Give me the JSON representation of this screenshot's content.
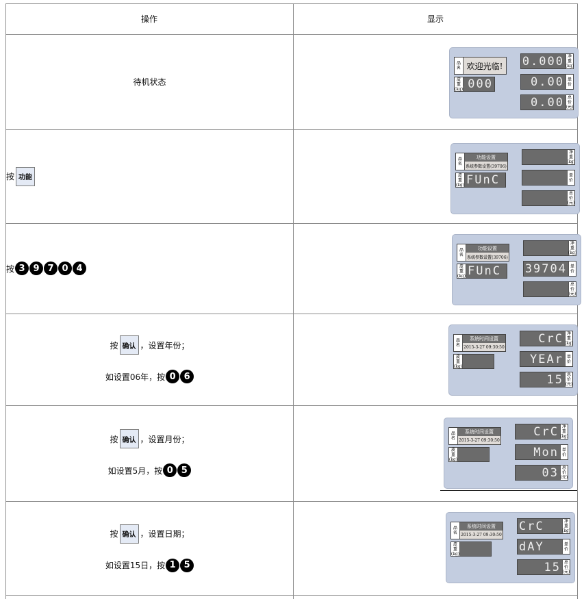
{
  "header": {
    "op": "操作",
    "display": "显示"
  },
  "labels": {
    "name": [
      "品",
      "名"
    ],
    "tare": [
      "皮",
      "重",
      "(kg)"
    ],
    "net": [
      "净",
      "重",
      "(kg)"
    ],
    "price": [
      "单",
      "价",
      ""
    ],
    "total": [
      "总",
      "价",
      "(元)"
    ]
  },
  "rows": [
    {
      "op": [
        [
          {
            "t": "text",
            "v": "待机状态"
          }
        ]
      ],
      "align": "center",
      "panel": {
        "name_big": "欢迎光临!",
        "tare": "0.000",
        "net": "0.000",
        "price": "0.00",
        "total": "0.00",
        "tare_left": false
      }
    },
    {
      "op": [
        [
          {
            "t": "text",
            "v": "按"
          },
          {
            "t": "key",
            "v": "功能"
          }
        ]
      ],
      "align": "left",
      "panel": {
        "name_top": "功能设置",
        "name_bottom": "系统参数设置(39706)",
        "tare": "FUnC",
        "net": "",
        "price": "",
        "total": "",
        "tare_left": true
      }
    },
    {
      "op": [
        [
          {
            "t": "text",
            "v": "按"
          },
          {
            "t": "dig",
            "v": "3"
          },
          {
            "t": "dig",
            "v": "9"
          },
          {
            "t": "dig",
            "v": "7"
          },
          {
            "t": "dig",
            "v": "0"
          },
          {
            "t": "dig",
            "v": "4"
          }
        ]
      ],
      "align": "left",
      "panel": {
        "name_top": "功能设置",
        "name_bottom": "系统参数设置(39706)",
        "tare": "FUnC",
        "net": "",
        "price": "39704",
        "total": "",
        "tare_left": true
      }
    },
    {
      "op": [
        [
          {
            "t": "text",
            "v": "按"
          },
          {
            "t": "key",
            "v": "确认"
          },
          {
            "t": "text",
            "v": "，设置年份；"
          }
        ],
        [
          {
            "t": "text",
            "v": "如设置06年，按"
          },
          {
            "t": "dig",
            "v": "0"
          },
          {
            "t": "dig",
            "v": "6"
          }
        ]
      ],
      "align": "center",
      "panel": {
        "name_top": "系统时间设置",
        "name_bottom": "2015-3-27 09:30:50",
        "tare": "",
        "net": "CrC",
        "price": "YEAr",
        "total": "15",
        "tare_left": false
      }
    },
    {
      "op": [
        [
          {
            "t": "text",
            "v": "按"
          },
          {
            "t": "key",
            "v": "确认"
          },
          {
            "t": "text",
            "v": "，设置月份；"
          }
        ],
        [
          {
            "t": "text",
            "v": "如设置5月，按"
          },
          {
            "t": "dig",
            "v": "0"
          },
          {
            "t": "dig",
            "v": "5"
          }
        ]
      ],
      "align": "center",
      "panel": {
        "name_top": "系统时间设置",
        "name_bottom": "2015-3-27 09:30:50",
        "tare": "",
        "net": "CrC",
        "price": "Mon",
        "total": "03",
        "tare_left": false
      }
    },
    {
      "op": [
        [
          {
            "t": "text",
            "v": "按"
          },
          {
            "t": "key",
            "v": "确认"
          },
          {
            "t": "text",
            "v": "，设置日期；"
          }
        ],
        [
          {
            "t": "text",
            "v": "如设置15日，按"
          },
          {
            "t": "dig",
            "v": "1"
          },
          {
            "t": "dig",
            "v": "5"
          }
        ]
      ],
      "align": "center",
      "panel": {
        "name_top": "系统时间设置",
        "name_bottom": "2015-3-27 09:30:50",
        "tare": "",
        "net": "CrC",
        "price": "dAY",
        "total": "15",
        "tare_left": false,
        "net_left": true,
        "price_left": true
      }
    }
  ]
}
